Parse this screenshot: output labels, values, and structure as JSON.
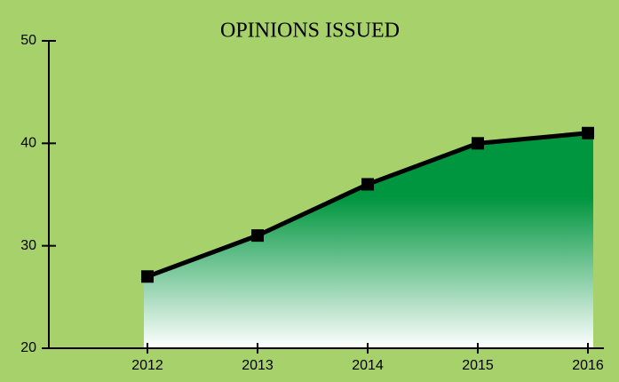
{
  "chart_data": {
    "type": "area",
    "title": "OPINIONS ISSUED",
    "categories": [
      "2012",
      "2013",
      "2014",
      "2015",
      "2016"
    ],
    "values": [
      27,
      31,
      36,
      40,
      41
    ],
    "color": "#00963f",
    "line_color": "#000000",
    "ylim": [
      20,
      50
    ],
    "yticks": [
      20,
      30,
      40,
      50
    ]
  }
}
